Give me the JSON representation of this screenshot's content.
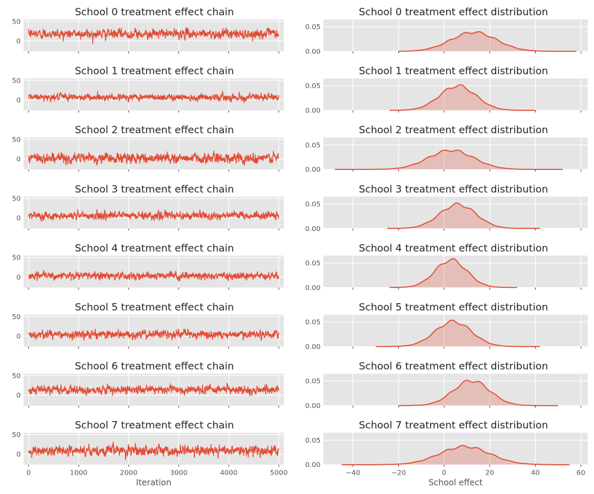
{
  "chart_data": {
    "type": "line",
    "description_grid": "8 rows x 2 columns; left: trace plots, right: kernel density plots",
    "style": {
      "axes_bg": "#e5e5e5",
      "grid_color": "#ffffff",
      "line_color": "#e24a33",
      "fill_color": "#e24a33"
    },
    "chains": {
      "xlabel": "Iteration",
      "xlim": [
        -100,
        5100
      ],
      "xticks": [
        0,
        1000,
        2000,
        3000,
        4000,
        5000
      ],
      "yticks": [
        0,
        50
      ],
      "n_iter": 5000,
      "panels": [
        {
          "title": "School 0 treatment effect chain",
          "mean": 18,
          "sd": 9,
          "ylim": [
            -27,
            55
          ]
        },
        {
          "title": "School 1 treatment effect chain",
          "mean": 7,
          "sd": 7,
          "ylim": [
            -27,
            55
          ]
        },
        {
          "title": "School 2 treatment effect chain",
          "mean": 2,
          "sd": 10,
          "ylim": [
            -27,
            55
          ]
        },
        {
          "title": "School 3 treatment effect chain",
          "mean": 6,
          "sd": 8,
          "ylim": [
            -27,
            55
          ]
        },
        {
          "title": "School 4 treatment effect chain",
          "mean": 3,
          "sd": 7,
          "ylim": [
            -27,
            55
          ]
        },
        {
          "title": "School 5 treatment effect chain",
          "mean": 4,
          "sd": 8,
          "ylim": [
            -27,
            55
          ]
        },
        {
          "title": "School 6 treatment effect chain",
          "mean": 14,
          "sd": 8,
          "ylim": [
            -27,
            55
          ]
        },
        {
          "title": "School 7 treatment effect chain",
          "mean": 9,
          "sd": 10,
          "ylim": [
            -27,
            55
          ]
        }
      ]
    },
    "distributions": {
      "xlabel": "School effect",
      "xlim": [
        -53,
        63
      ],
      "xticks": [
        -40,
        -20,
        0,
        20,
        40,
        60
      ],
      "yticks": [
        0.0,
        0.05
      ],
      "ytick_labels": [
        "0.00",
        "0.05"
      ],
      "ylim": [
        0,
        0.065
      ],
      "panels": [
        {
          "title": "School 0 treatment effect distribution",
          "mean": 13,
          "sd": 10,
          "peak": 0.039,
          "range": [
            -20,
            58
          ]
        },
        {
          "title": "School 1 treatment effect distribution",
          "mean": 6,
          "sd": 8,
          "peak": 0.05,
          "range": [
            -24,
            40
          ]
        },
        {
          "title": "School 2 treatment effect distribution",
          "mean": 3,
          "sd": 10,
          "peak": 0.039,
          "range": [
            -48,
            52
          ]
        },
        {
          "title": "School 3 treatment effect distribution",
          "mean": 6,
          "sd": 8,
          "peak": 0.049,
          "range": [
            -25,
            42
          ]
        },
        {
          "title": "School 4 treatment effect distribution",
          "mean": 3,
          "sd": 7,
          "peak": 0.056,
          "range": [
            -24,
            32
          ]
        },
        {
          "title": "School 5 treatment effect distribution",
          "mean": 4,
          "sd": 8,
          "peak": 0.051,
          "range": [
            -30,
            42
          ]
        },
        {
          "title": "School 6 treatment effect distribution",
          "mean": 12,
          "sd": 8,
          "peak": 0.051,
          "range": [
            -20,
            50
          ]
        },
        {
          "title": "School 7 treatment effect distribution",
          "mean": 9,
          "sd": 11,
          "peak": 0.037,
          "range": [
            -45,
            55
          ]
        }
      ]
    }
  }
}
